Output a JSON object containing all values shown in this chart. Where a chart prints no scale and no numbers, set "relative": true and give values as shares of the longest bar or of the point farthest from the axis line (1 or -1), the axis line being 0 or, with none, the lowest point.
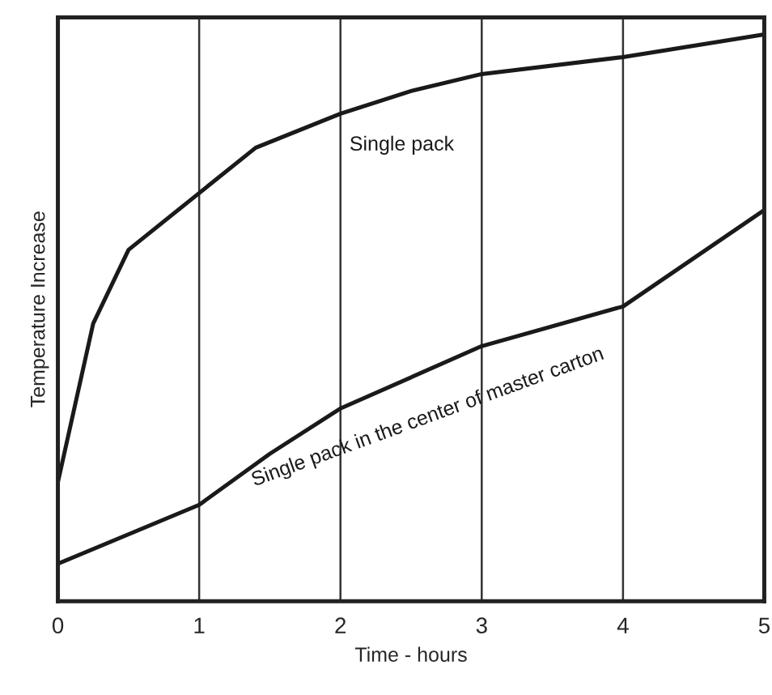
{
  "chart_data": {
    "type": "line",
    "relative": true,
    "xlabel": "Time - hours",
    "ylabel": "Temperature Increase",
    "xlim": [
      0,
      5
    ],
    "xticks": [
      0,
      1,
      2,
      3,
      4,
      5
    ],
    "grid": "x",
    "marker": "none",
    "line_style": "solid",
    "series": [
      {
        "name": "Single pack",
        "color": "#1a1a1a",
        "x": [
          0,
          0.25,
          0.5,
          1,
          1.4,
          2,
          2.5,
          3,
          4,
          5
        ],
        "values": [
          0.21,
          0.49,
          0.62,
          0.72,
          0.8,
          0.86,
          0.9,
          0.93,
          0.96,
          1.0
        ]
      },
      {
        "name": "Single pack in the center of master carton",
        "color": "#1a1a1a",
        "x": [
          0,
          1,
          1.5,
          2,
          3,
          4,
          5
        ],
        "values": [
          0.066,
          0.17,
          0.26,
          0.34,
          0.45,
          0.52,
          0.69
        ]
      }
    ]
  }
}
